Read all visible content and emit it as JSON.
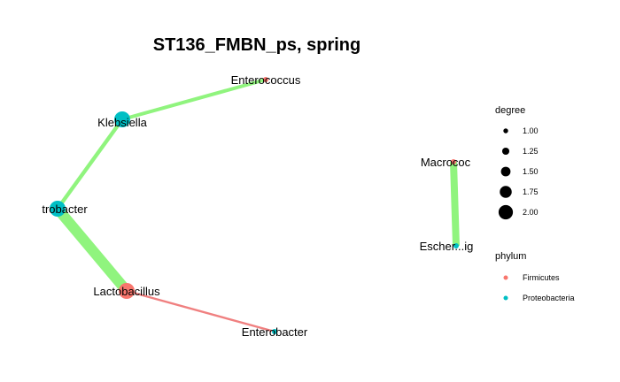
{
  "title": "ST136_FMBN_ps, spring",
  "colors": {
    "Firmicutes": "#F8766D",
    "Proteobacteria": "#00BFC4",
    "positive_edge": "#90F47E",
    "negative_edge": "#F08080"
  },
  "nodes": [
    {
      "id": "enterococcus",
      "label": "Enterococcus",
      "phylum": "Firmicutes",
      "degree": 1
    },
    {
      "id": "klebsiella",
      "label": "Klebsiella",
      "phylum": "Proteobacteria",
      "degree": 2
    },
    {
      "id": "citrobacter",
      "label": "trobacter",
      "phylum": "Proteobacteria",
      "degree": 2
    },
    {
      "id": "lactobacillus",
      "label": "Lactobacillus",
      "phylum": "Firmicutes",
      "degree": 2
    },
    {
      "id": "enterobacter",
      "label": "Enterobacter",
      "phylum": "Proteobacteria",
      "degree": 1
    },
    {
      "id": "macrococcus",
      "label": "Macrococ",
      "phylum": "Firmicutes",
      "degree": 1
    },
    {
      "id": "escherichia",
      "label": "Escher...ig",
      "phylum": "Proteobacteria",
      "degree": 1
    }
  ],
  "edges": [
    {
      "source": "klebsiella",
      "target": "enterococcus",
      "sign": "positive",
      "weight": 1.0
    },
    {
      "source": "klebsiella",
      "target": "citrobacter",
      "sign": "positive",
      "weight": 1.1
    },
    {
      "source": "citrobacter",
      "target": "lactobacillus",
      "sign": "positive",
      "weight": 3.0
    },
    {
      "source": "lactobacillus",
      "target": "enterobacter",
      "sign": "negative",
      "weight": 0.6
    },
    {
      "source": "macrococcus",
      "target": "escherichia",
      "sign": "positive",
      "weight": 2.0
    }
  ],
  "legend": {
    "degree": {
      "title": "degree",
      "items": [
        {
          "label": "1.00",
          "value": 1.0
        },
        {
          "label": "1.25",
          "value": 1.25
        },
        {
          "label": "1.50",
          "value": 1.5
        },
        {
          "label": "1.75",
          "value": 1.75
        },
        {
          "label": "2.00",
          "value": 2.0
        }
      ]
    },
    "phylum": {
      "title": "phylum",
      "items": [
        {
          "label": "Firmicutes"
        },
        {
          "label": "Proteobacteria"
        }
      ]
    }
  }
}
